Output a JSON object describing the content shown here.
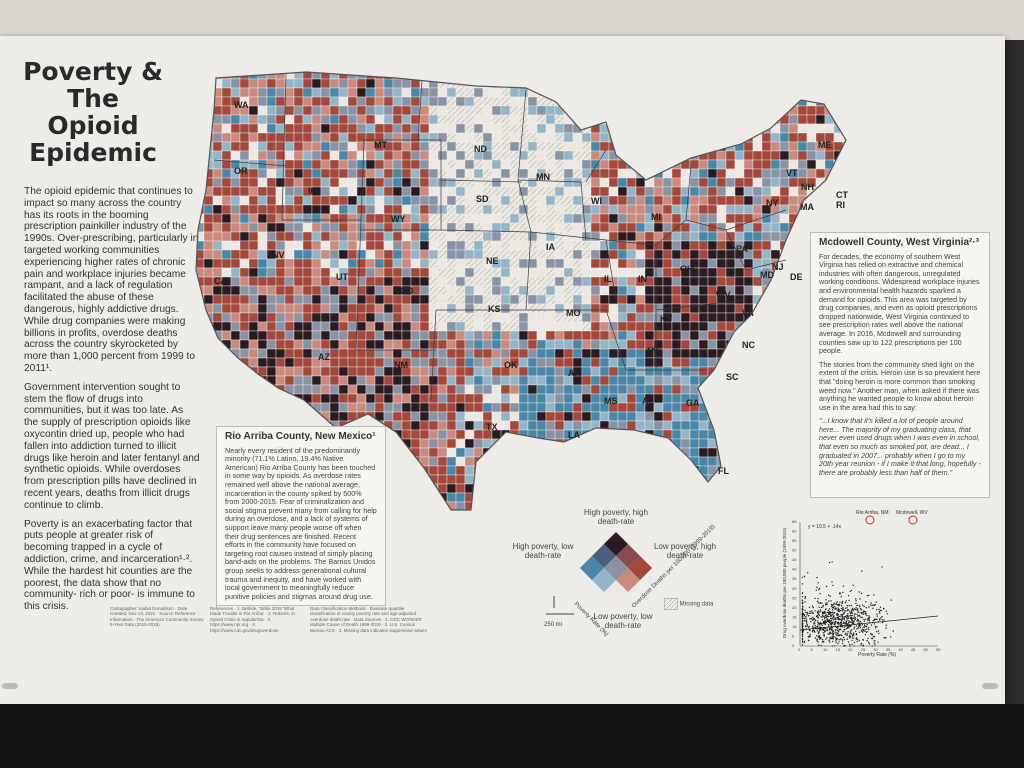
{
  "poster": {
    "title": "Poverty & The Opioid Epidemic",
    "intro_paragraphs": [
      "The opioid epidemic that continues to impact so many across the country has its roots in the booming prescription painkiller industry of the 1990s. Over-prescribing, particularly in targeted working communities experiencing higher rates of chronic pain and workplace injuries became rampant, and a lack of regulation facilitated the abuse of these dangerous, highly addictive drugs. While drug companies were making billions in profits, overdose deaths across the country skyrocketed by more than 1,000 percent from 1999 to 2011¹.",
      "Government intervention sought to stem the flow of drugs into communities, but it was too late. As the supply of prescription opioids like oxycontin dried up, people who had fallen into addiction turned to illicit drugs like heroin and later fentanyl and synthetic opioids. While overdoses from prescription pills have declined in recent years, deaths from illicit drugs continue to climb.",
      "Poverty is an exacerbating factor that puts people at greater risk of becoming trapped in a cycle of addiction, crime, and incarceration¹·². While the hardest hit counties are the poorest, the data show that no community- rich or poor- is immune to this crisis."
    ]
  },
  "map": {
    "state_labels": [
      "WA",
      "OR",
      "ID",
      "MT",
      "ND",
      "MN",
      "WI",
      "MI",
      "NY",
      "VT",
      "NH",
      "ME",
      "MA",
      "CT",
      "RI",
      "PA",
      "NJ",
      "DE",
      "MD",
      "OH",
      "IN",
      "IL",
      "IA",
      "SD",
      "NE",
      "WY",
      "NV",
      "UT",
      "CA",
      "CO",
      "KS",
      "MO",
      "KY",
      "WV",
      "VA",
      "NC",
      "TN",
      "AR",
      "OK",
      "NM",
      "AZ",
      "TX",
      "LA",
      "MS",
      "AL",
      "GA",
      "SC",
      "FL"
    ],
    "colors": {
      "high_poverty_high_death": "#2a1a22",
      "high_poverty_low_death": "#4a86a8",
      "low_poverty_high_death": "#a2483c",
      "low_poverty_low_death": "#ece7e2",
      "mid_a": "#8a93a6",
      "mid_b": "#c98a80",
      "mid_c": "#93b5c7",
      "missing": "#e4e0da"
    }
  },
  "rio_arriba": {
    "heading": "Rio Arriba County, New Mexico¹",
    "body": "Nearly every resident of the predominantly minority (71.1% Latino, 19.4% Native American) Rio Arriba County has been touched in some way by opioids. As overdose rates remained well above the national average, incarceration in the county spiked by 500% from 2000-2015. Fear of criminalization and social stigma prevent many from calling for help during an overdose, and a lack of systems of support leave many people worse off when their drug sentences are finished. Recent efforts in the community have focused on targeting root causes instead of simply placing band-aids on the problems. The Barrios Unidos group seeks to address generational cultural trauma and inequity, and have worked with local government to meaningfully reduce punitive policies and stigmas around drug use."
  },
  "mcdowell": {
    "heading": "Mcdowell County, West Virginia²·³",
    "body": "For decades, the economy of southern West Virginia has relied on extractive and chemical industries with often dangerous, unregulated working conditions. Widespread workplace injuries and environmental health hazards sparked a demand for opioids. This area was targeted by drug companies, and even as opioid prescriptions dropped nationwide, West Virginia continued to see prescription rates well above the national average. In 2016, Mcdowell and surrounding counties saw up to 122 prescriptions per 100 people.",
    "body2": "The stories from the community shed light on the extent of the crisis. Heroin use is so prevalent here that \"doing heroin is more common than smoking weed now.\" Another man, when asked if there was anything he wanted people to know about heroin use in the area had this to say:",
    "quote": "\"...I know that it's killed a lot of people around here... The majority of my graduating class, that never even used drugs when I was even in school, that even so much as smoked pot, are dead... I graduated in 2007... probably when I go to my 20th year reunion - if I make it that long, hopefully - there are probably less than half of them.\""
  },
  "legend": {
    "top": "High poverty, high death-rate",
    "left": "High poverty, low death-rate",
    "right": "Low poverty, high death-rate",
    "bottom": "Low poverty, low death-rate",
    "x_axis": "Poverty Rate (%)",
    "y_axis": "Overdose Deaths per 100,000 (1999-2019)",
    "missing": "Missing data",
    "scale": "250 mi"
  },
  "scatter": {
    "equation": "y = 10.5 + .14x",
    "annotation_1": "Rio Arriba, NM",
    "annotation_2": "Mcdowell, WV",
    "x_label": "Poverty Rate (%)",
    "y_label": "Drug overdose deaths per 100,000 people (1999-2019)",
    "x_ticks": [
      "0",
      "5",
      "10",
      "15",
      "20",
      "25",
      "30",
      "35",
      "40",
      "45",
      "50",
      "55"
    ],
    "y_ticks": [
      "0",
      "5",
      "10",
      "15",
      "20",
      "25",
      "30",
      "35",
      "40",
      "45",
      "50",
      "55",
      "60",
      "65"
    ]
  },
  "references": {
    "left": "Cartographer: Isabel Donaldson · Date Created: Nov 13, 2021 · Source Reference Information · The American Community Survey 5-Year Data (2015-2019)",
    "middle": "References · 1. Bellisle, Tahlia 2019 'What Made Trouble in Rio Arriba' · 2. Roberts, D. Opioid Crisis in Appalachia · 3. https://www.npr.org · 4. https://www.cdc.gov/drugoverdose",
    "right": "Data Classification Methods · Bivariate quantile classification of county poverty rate and age-adjusted overdose death rate · Data Sources · 1. CDC WONDER Multiple Cause of Death 1999-2019 · 2. U.S. Census Bureau ACS · 3. Missing data indicates suppressed values"
  }
}
